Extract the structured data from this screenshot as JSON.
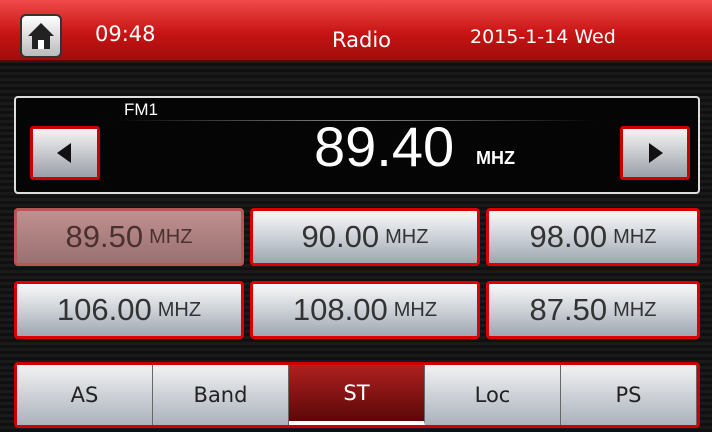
{
  "header": {
    "time": "09:48",
    "title": "Radio",
    "date": "2015-1-14 Wed"
  },
  "tuner": {
    "band": "FM1",
    "frequency": "89.40",
    "unit": "MHZ"
  },
  "presets": [
    {
      "frequency": "89.50",
      "unit": "MHZ"
    },
    {
      "frequency": "90.00",
      "unit": "MHZ"
    },
    {
      "frequency": "98.00",
      "unit": "MHZ"
    },
    {
      "frequency": "106.00",
      "unit": "MHZ"
    },
    {
      "frequency": "108.00",
      "unit": "MHZ"
    },
    {
      "frequency": "87.50",
      "unit": "MHZ"
    }
  ],
  "tabs": [
    "AS",
    "Band",
    "ST",
    "Loc",
    "PS"
  ]
}
